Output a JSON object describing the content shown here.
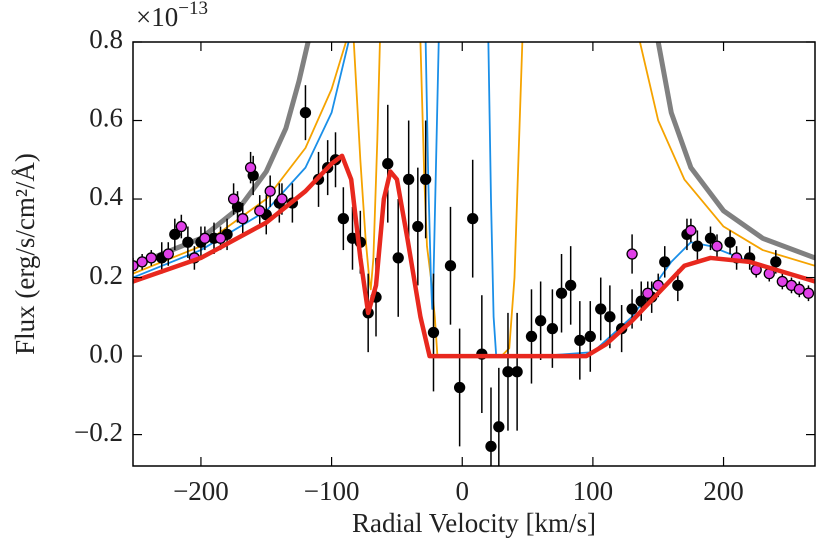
{
  "chart_data": {
    "type": "line",
    "offset_text": "×10",
    "offset_exponent": "−13",
    "xlabel": "Radial Velocity [km/s]",
    "ylabel": "Flux (erg/s/cm²/Å)",
    "xlim": [
      -252,
      270
    ],
    "ylim": [
      -0.28,
      0.8
    ],
    "xticks": [
      {
        "value": -200,
        "label": "−200"
      },
      {
        "value": -100,
        "label": "−100"
      },
      0,
      100,
      200
    ],
    "yticks": [
      {
        "value": -0.2,
        "label": "−0.2"
      },
      {
        "value": 0,
        "label": "0.0"
      },
      0.2,
      0.4,
      0.6,
      0.8
    ],
    "series": [
      {
        "style": "line",
        "color": "#808080",
        "width": 5,
        "x": [
          -252,
          -200,
          -170,
          -150,
          -135,
          -125,
          -118,
          null,
          150,
          160,
          175,
          200,
          230,
          270
        ],
        "values": [
          0.23,
          0.3,
          0.38,
          0.47,
          0.58,
          0.7,
          0.8,
          null,
          0.8,
          0.62,
          0.48,
          0.37,
          0.3,
          0.25
        ]
      },
      {
        "style": "line",
        "color": "#f5a300",
        "width": 1.8,
        "x": [
          -252,
          -200,
          -150,
          -120,
          -100,
          -89,
          null,
          -83,
          -78,
          -74,
          -71,
          -70,
          -68,
          -65,
          -63,
          null,
          -32,
          -29,
          -27,
          -24,
          -21,
          -19,
          0,
          30,
          36,
          40,
          43,
          46,
          null,
          136,
          150,
          170,
          200,
          230,
          270
        ],
        "values": [
          0.21,
          0.28,
          0.4,
          0.53,
          0.68,
          0.8,
          null,
          0.8,
          0.5,
          0.3,
          0.19,
          0.17,
          0.25,
          0.55,
          0.8,
          null,
          0.8,
          0.45,
          0.28,
          0.2,
          0.1,
          0.0,
          0,
          0,
          0.02,
          0.2,
          0.5,
          0.8,
          null,
          0.8,
          0.6,
          0.45,
          0.33,
          0.27,
          0.23
        ]
      },
      {
        "style": "line",
        "color": "#1a8fe8",
        "width": 1.8,
        "x": [
          -252,
          -200,
          -150,
          -120,
          -100,
          -87,
          null,
          -28,
          -26,
          -24,
          -23,
          -22,
          -20,
          -18,
          null,
          20,
          22,
          24,
          26,
          30,
          60,
          100,
          130,
          160,
          175,
          190,
          220,
          270
        ],
        "values": [
          0.2,
          0.27,
          0.37,
          0.48,
          0.62,
          0.8,
          null,
          0.8,
          0.45,
          0.2,
          0.12,
          0.2,
          0.5,
          0.8,
          null,
          0.8,
          0.4,
          0.1,
          0.0,
          0,
          0,
          0.01,
          0.1,
          0.24,
          0.29,
          0.28,
          0.24,
          0.19
        ]
      },
      {
        "style": "errorbar",
        "color": "#000000",
        "x": [
          -230,
          -220,
          -210,
          -200,
          -190,
          -180,
          -172,
          -160,
          -150,
          -140,
          -130,
          -120,
          -110,
          -103,
          -97,
          -91,
          -84,
          -78,
          -72,
          -66,
          -57,
          -49,
          -41,
          -34,
          -28,
          -22,
          -9,
          -2,
          8,
          15,
          22,
          28,
          35,
          42,
          53,
          60,
          69,
          76,
          83,
          90,
          98,
          106,
          113,
          122,
          130,
          137,
          145,
          155,
          165,
          172,
          180,
          190,
          205,
          220,
          240
        ],
        "values": [
          0.25,
          0.31,
          0.29,
          0.29,
          0.3,
          0.31,
          0.38,
          0.46,
          0.36,
          0.39,
          0.39,
          0.62,
          0.45,
          0.48,
          0.5,
          0.35,
          0.3,
          0.29,
          0.11,
          0.15,
          0.49,
          0.25,
          0.45,
          0.33,
          0.45,
          0.06,
          0.23,
          -0.08,
          0.35,
          0.005,
          -0.23,
          -0.18,
          -0.04,
          -0.04,
          0.05,
          0.09,
          0.07,
          0.16,
          0.18,
          0.04,
          0.05,
          0.12,
          0.1,
          0.07,
          0.12,
          0.14,
          0.15,
          0.24,
          0.18,
          0.31,
          0.28,
          0.3,
          0.29,
          0.25,
          0.24
        ],
        "errors": [
          0.04,
          0.04,
          0.04,
          0.04,
          0.04,
          0.04,
          0.04,
          0.05,
          0.05,
          0.05,
          0.05,
          0.07,
          0.07,
          0.07,
          0.07,
          0.08,
          0.08,
          0.08,
          0.1,
          0.1,
          0.15,
          0.15,
          0.15,
          0.15,
          0.15,
          0.15,
          0.15,
          0.15,
          0.15,
          0.15,
          0.15,
          0.15,
          0.15,
          0.15,
          0.12,
          0.1,
          0.1,
          0.1,
          0.1,
          0.1,
          0.09,
          0.08,
          0.08,
          0.06,
          0.05,
          0.05,
          0.04,
          0.04,
          0.04,
          0.04,
          0.04,
          0.03,
          0.03,
          0.03,
          0.03
        ]
      },
      {
        "style": "errorbar",
        "color": "#e040e8",
        "x": [
          -252,
          -245,
          -238,
          -225,
          -215,
          -205,
          -197,
          -185,
          -175,
          -168,
          -162,
          -155,
          -147,
          -138,
          130,
          142,
          150,
          175,
          195,
          210,
          225,
          235,
          245,
          252,
          258,
          265
        ],
        "values": [
          0.23,
          0.24,
          0.25,
          0.26,
          0.33,
          0.25,
          0.3,
          0.3,
          0.4,
          0.35,
          0.48,
          0.37,
          0.42,
          0.4,
          0.26,
          0.16,
          0.18,
          0.32,
          0.28,
          0.25,
          0.22,
          0.21,
          0.19,
          0.18,
          0.17,
          0.16
        ],
        "errors": [
          0.02,
          0.02,
          0.02,
          0.03,
          0.03,
          0.03,
          0.03,
          0.03,
          0.04,
          0.04,
          0.04,
          0.04,
          0.04,
          0.04,
          0.05,
          0.03,
          0.03,
          0.03,
          0.03,
          0.03,
          0.02,
          0.02,
          0.02,
          0.02,
          0.02,
          0.02
        ]
      },
      {
        "style": "line",
        "color": "#e8281e",
        "width": 4.5,
        "x": [
          -252,
          -200,
          -150,
          -120,
          -100,
          -92,
          -85,
          -78,
          -72,
          -66,
          -60,
          -55,
          -50,
          -42,
          -32,
          -25,
          0,
          50,
          95,
          110,
          130,
          150,
          170,
          190,
          220,
          250,
          270
        ],
        "values": [
          0.19,
          0.25,
          0.34,
          0.42,
          0.49,
          0.51,
          0.45,
          0.25,
          0.11,
          0.18,
          0.4,
          0.47,
          0.45,
          0.3,
          0.1,
          0.0,
          0,
          0,
          0,
          0.03,
          0.09,
          0.16,
          0.23,
          0.25,
          0.24,
          0.21,
          0.19
        ]
      }
    ]
  }
}
